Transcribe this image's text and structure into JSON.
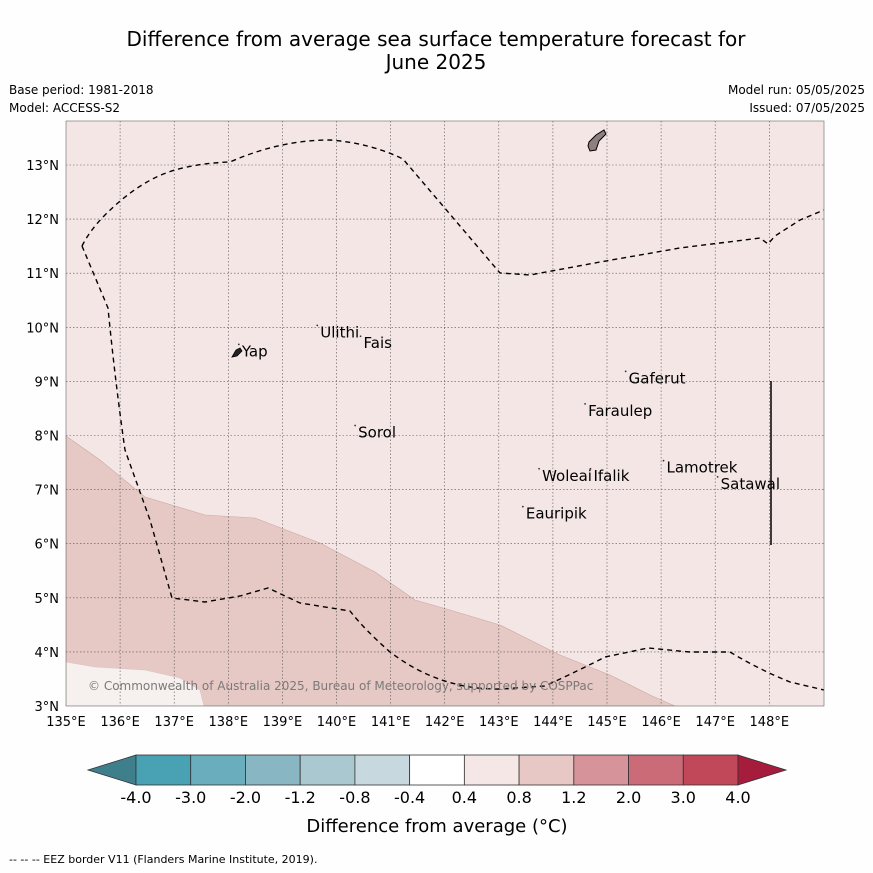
{
  "title_line1": "Difference from average sea surface temperature forecast for",
  "title_line2": "June 2025",
  "base_period": "Base period: 1981-2018",
  "model": "Model: ACCESS-S2",
  "model_run": "Model run: 05/05/2025",
  "issued": "Issued: 07/05/2025",
  "copyright": "© Commonwealth of Australia 2025, Bureau of Meteorology, supported by COSPPac",
  "eez_note": "--  --  -- EEZ border V11 (Flanders Marine Institute, 2019).",
  "colorbar_label": "Difference from average (°C)",
  "colorbar_ticks": [
    "-4.0",
    "-3.0",
    "-2.0",
    "-1.2",
    "-0.8",
    "-0.4",
    "0.4",
    "0.8",
    "1.2",
    "2.0",
    "3.0",
    "4.0"
  ],
  "colorbar_colors": [
    "#3f7f8c",
    "#48a2b4",
    "#6aaebd",
    "#88b6c2",
    "#a9c8cf",
    "#c7d9de",
    "#ffffff",
    "#f5e7e6",
    "#e8c8c4",
    "#d6939a",
    "#cb6b77",
    "#c04858",
    "#a51c3c"
  ],
  "lon_labels": [
    "135°E",
    "136°E",
    "137°E",
    "138°E",
    "139°E",
    "140°E",
    "141°E",
    "142°E",
    "143°E",
    "144°E",
    "145°E",
    "146°E",
    "147°E",
    "148°E"
  ],
  "lat_labels": [
    "3°N",
    "4°N",
    "5°N",
    "6°N",
    "7°N",
    "8°N",
    "9°N",
    "10°N",
    "11°N",
    "12°N",
    "13°N"
  ],
  "places": [
    {
      "name": "Yap",
      "lon": 138.25,
      "lat": 9.5
    },
    {
      "name": "Ulithi",
      "lon": 139.7,
      "lat": 9.85
    },
    {
      "name": "Fais",
      "lon": 140.5,
      "lat": 9.65
    },
    {
      "name": "Gaferut",
      "lon": 145.4,
      "lat": 9.0
    },
    {
      "name": "Faraulep",
      "lon": 144.65,
      "lat": 8.4
    },
    {
      "name": "Sorol",
      "lon": 140.4,
      "lat": 8.0
    },
    {
      "name": "Woleai",
      "lon": 143.8,
      "lat": 7.2
    },
    {
      "name": "Ifalik",
      "lon": 144.75,
      "lat": 7.2
    },
    {
      "name": "Lamotrek",
      "lon": 146.1,
      "lat": 7.35
    },
    {
      "name": "Satawal",
      "lon": 147.1,
      "lat": 7.05
    },
    {
      "name": "Eauripik",
      "lon": 143.5,
      "lat": 6.5
    }
  ],
  "map_extent": {
    "lon": [
      135,
      149
    ],
    "lat": [
      3,
      13.8
    ]
  },
  "anomaly_fill_colors": {
    "background": "#f4e6e5",
    "warm_band": "#e6c8c4",
    "cool_corner": "#f6f0ee"
  }
}
